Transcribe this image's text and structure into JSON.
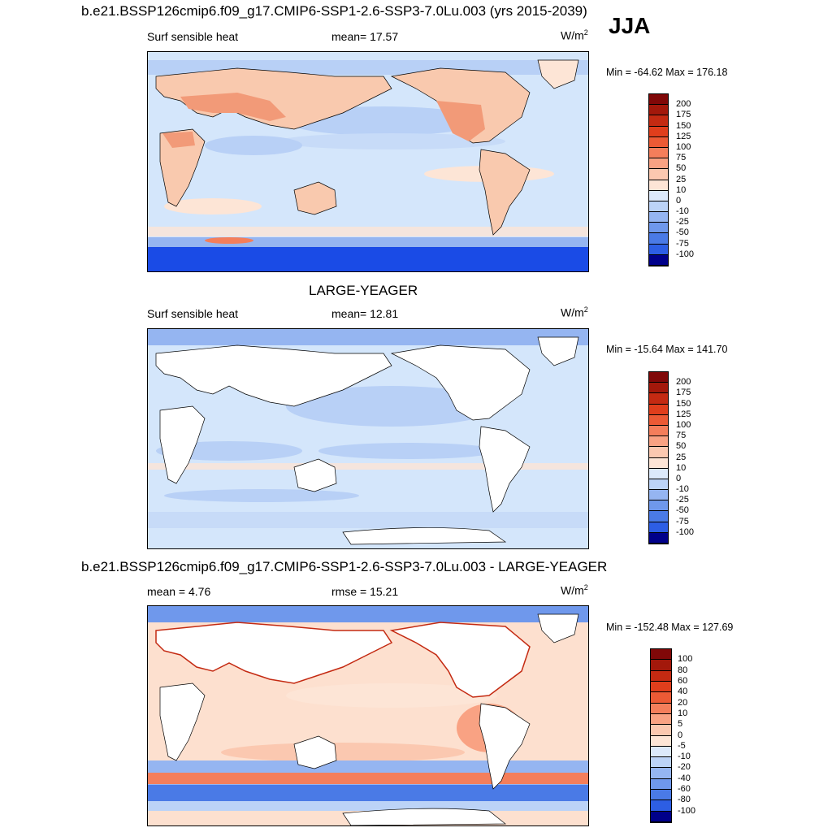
{
  "season": "JJA",
  "colors": {
    "pos": [
      "#fde5d6",
      "#fbc8b0",
      "#f9a283",
      "#f47e5b",
      "#ec5a35",
      "#e03e1c",
      "#c42a12",
      "#a3180b",
      "#800808"
    ],
    "neg": [
      "#ffffff",
      "#dce9fb",
      "#bcd3f7",
      "#95b5f1",
      "#6f98ec",
      "#4a7ae6",
      "#2d5ee4",
      "#1a3ee0",
      "#0f22b8",
      "#00008a"
    ],
    "ocean_light": "#d4e6fb",
    "ocean_mid": "#b8d0f6",
    "antarctica": "#1a4be6",
    "land_warm": "#f9c9ae",
    "land_hot": "#f29a78",
    "diff_bg": "#fde0cf"
  },
  "panels": [
    {
      "title": "b.e21.BSSP126cmip6.f09_g17.CMIP6-SSP1-2.6-SSP3-7.0Lu.003 (yrs 2015-2039)",
      "left_label": "Surf sensible heat",
      "center_label": "mean=  17.57",
      "units": "W/m",
      "units_sup": "2",
      "minmax": "Min = -64.62 Max = 176.18",
      "colorbar_ticks": [
        "200",
        "175",
        "150",
        "125",
        "100",
        "75",
        "50",
        "25",
        "10",
        "0",
        "-10",
        "-25",
        "-50",
        "-75",
        "-100"
      ]
    },
    {
      "title": "LARGE-YEAGER",
      "left_label": "Surf sensible heat",
      "center_label": "mean=  12.81",
      "units": "W/m",
      "units_sup": "2",
      "minmax": "Min = -15.64 Max = 141.70",
      "colorbar_ticks": [
        "200",
        "175",
        "150",
        "125",
        "100",
        "75",
        "50",
        "25",
        "10",
        "0",
        "-10",
        "-25",
        "-50",
        "-75",
        "-100"
      ]
    },
    {
      "title": "b.e21.BSSP126cmip6.f09_g17.CMIP6-SSP1-2.6-SSP3-7.0Lu.003 - LARGE-YEAGER",
      "left_label": "mean =   4.76",
      "center_label": "rmse =  15.21",
      "units": "W/m",
      "units_sup": "2",
      "minmax": "Min = -152.48 Max = 127.69",
      "colorbar_ticks": [
        "100",
        "80",
        "60",
        "40",
        "20",
        "10",
        "5",
        "0",
        "-5",
        "-10",
        "-20",
        "-40",
        "-60",
        "-80",
        "-100"
      ]
    }
  ]
}
